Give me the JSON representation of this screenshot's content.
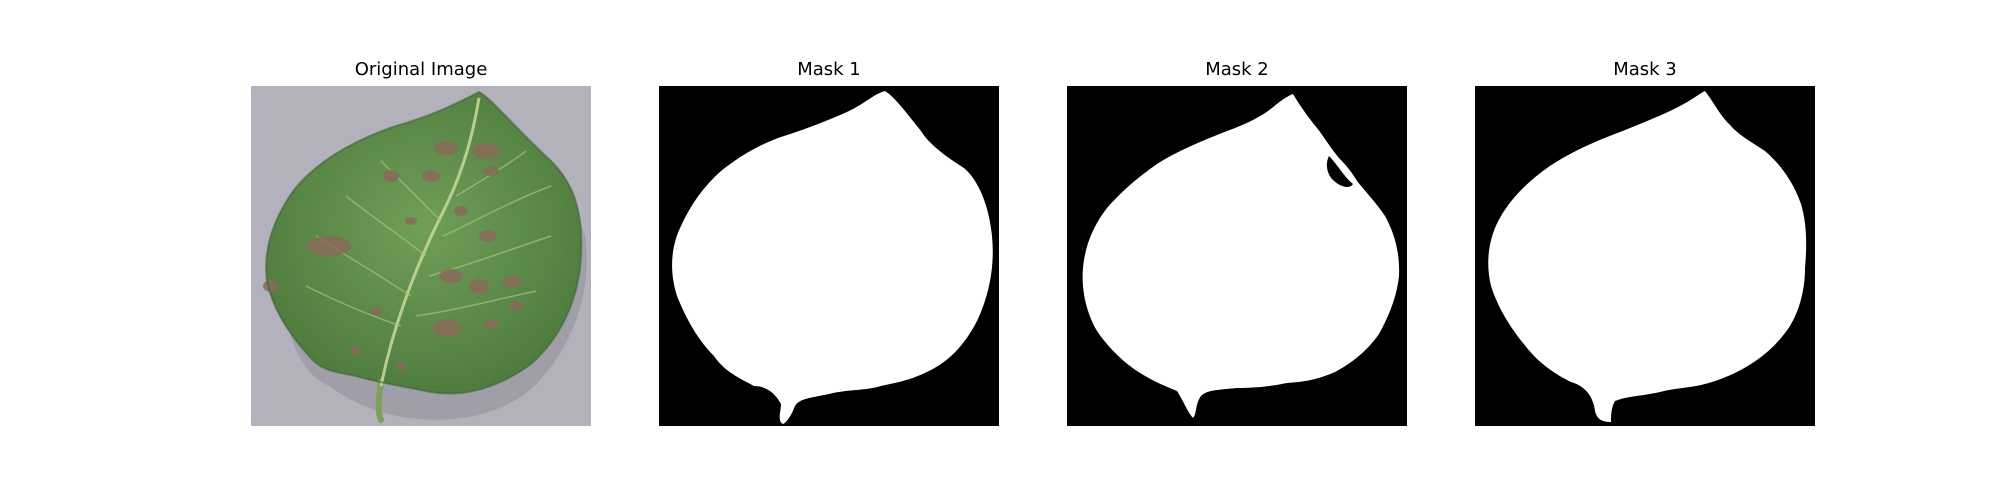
{
  "figure": {
    "panels": [
      {
        "title": "Original Image",
        "kind": "photo",
        "icon": "leaf-photo"
      },
      {
        "title": "Mask 1",
        "kind": "mask"
      },
      {
        "title": "Mask 2",
        "kind": "mask"
      },
      {
        "title": "Mask 3",
        "kind": "mask"
      }
    ]
  },
  "colors": {
    "mask_background": "#000000",
    "mask_foreground": "#ffffff",
    "photo_background": "#b8b6c0",
    "leaf_green": "#5e8f4c",
    "leaf_vein": "#c9d99a",
    "lesion": "#8a6a5a"
  }
}
